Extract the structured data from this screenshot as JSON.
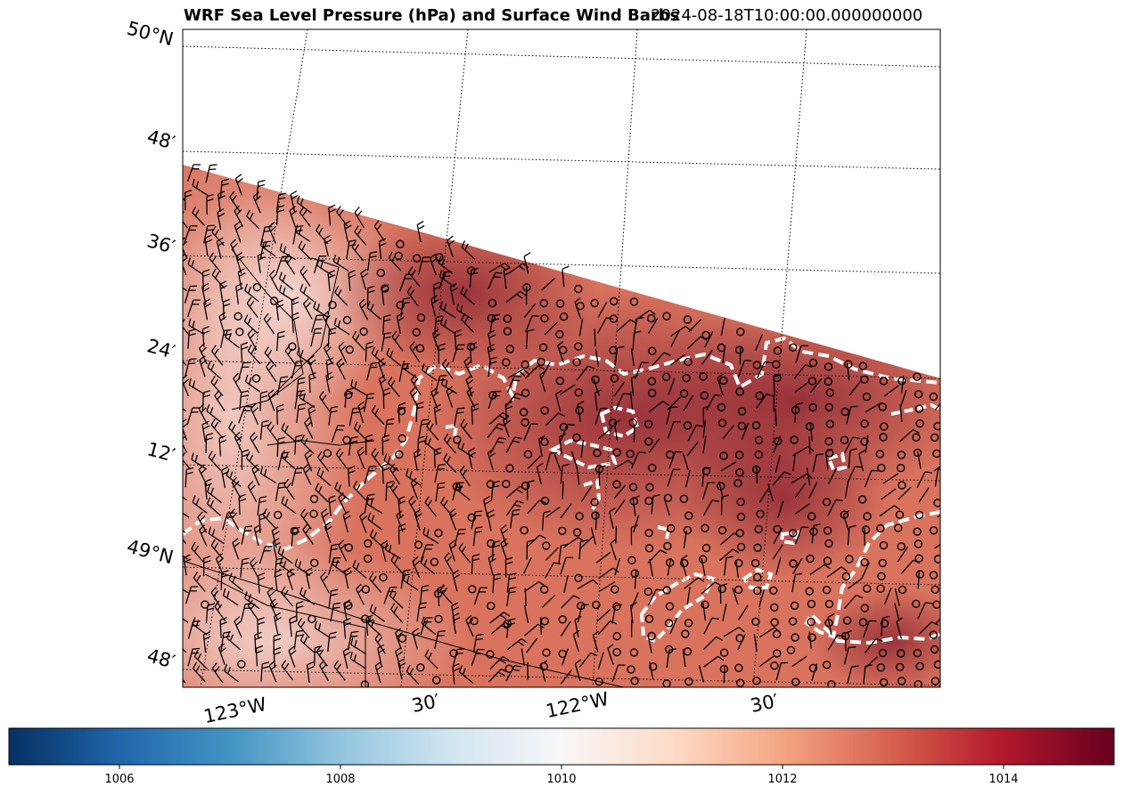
{
  "title": {
    "main": "WRF Sea Level Pressure (hPa) and Surface Wind Barbs",
    "time": "2024-08-18T10:00:00.000000000"
  },
  "gridlines": {
    "lat_labels": [
      "50°N",
      "48′",
      "36′",
      "24′",
      "12′",
      "49°N",
      "48′"
    ],
    "lon_labels": [
      "123°W",
      "30′",
      "122°W",
      "30′"
    ]
  },
  "colorbar": {
    "colormap": "RdBu_r",
    "range": [
      1005,
      1015
    ],
    "ticks": [
      "1006",
      "1008",
      "1010",
      "1012",
      "1014"
    ],
    "colors": [
      "#053061",
      "#2166ac",
      "#4393c3",
      "#92c5de",
      "#d1e5f0",
      "#f7f7f7",
      "#fddbc7",
      "#f4a582",
      "#d6604d",
      "#b2182b",
      "#67001f"
    ]
  },
  "field": {
    "variable": "sea level pressure",
    "low_pressure_region": "southwest",
    "high_pressure_region": "northeast"
  },
  "overlays": {
    "coastline_style": "white dashed",
    "barbs": "surface wind barbs, calm winds shown as circles"
  }
}
